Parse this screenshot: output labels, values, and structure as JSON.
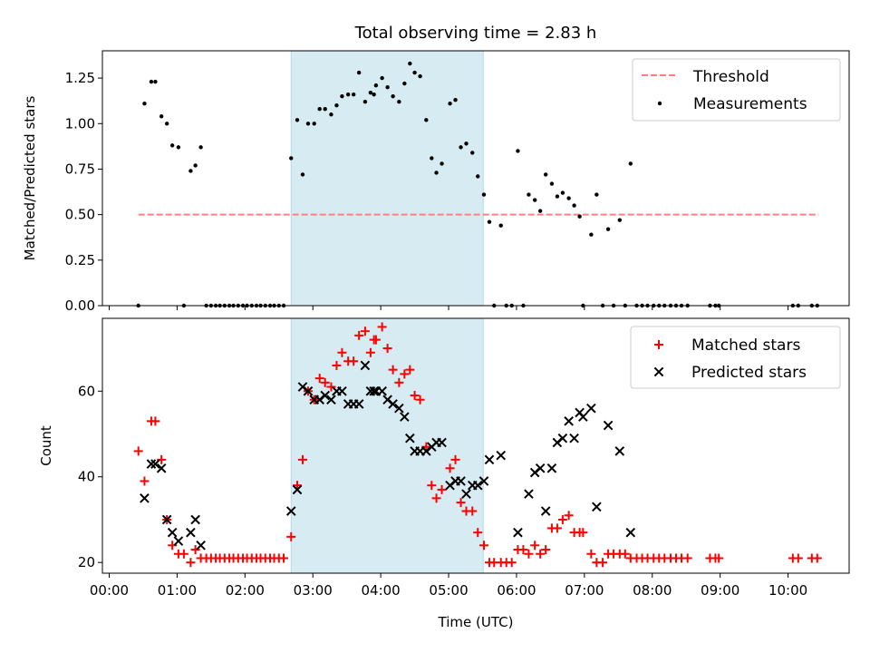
{
  "chart_data": [
    {
      "type": "scatter",
      "title": "Total observing time = 2.83 h",
      "xlabel": "",
      "ylabel": "Matched/Predicted stars",
      "xlim_hours": [
        -0.1,
        10.9
      ],
      "ylim": [
        0,
        1.4
      ],
      "y_ticks": [
        0.0,
        0.25,
        0.5,
        0.75,
        1.0,
        1.25
      ],
      "y_tick_labels": [
        "0.00",
        "0.25",
        "0.50",
        "0.75",
        "1.00",
        "1.25"
      ],
      "shaded_region_hours": [
        2.68,
        5.51
      ],
      "shaded_color": "#add8e6",
      "legend_placement": "top-right",
      "legend": [
        {
          "label": "Threshold",
          "marker": "dashed-line",
          "color": "#ff7f7f"
        },
        {
          "label": "Measurements",
          "marker": "dot",
          "color": "#000000"
        }
      ],
      "threshold": {
        "value": 0.5,
        "x_range_hours": [
          0.43,
          10.45
        ]
      },
      "measurements": [
        [
          0.43,
          0.0
        ],
        [
          0.52,
          1.11
        ],
        [
          0.62,
          1.23
        ],
        [
          0.68,
          1.23
        ],
        [
          0.77,
          1.04
        ],
        [
          0.85,
          1.0
        ],
        [
          0.93,
          0.88
        ],
        [
          1.02,
          0.87
        ],
        [
          1.1,
          0.0
        ],
        [
          1.2,
          0.74
        ],
        [
          1.27,
          0.77
        ],
        [
          1.35,
          0.87
        ],
        [
          1.43,
          0.0
        ],
        [
          1.5,
          0.0
        ],
        [
          1.57,
          0.0
        ],
        [
          1.63,
          0.0
        ],
        [
          1.7,
          0.0
        ],
        [
          1.77,
          0.0
        ],
        [
          1.83,
          0.0
        ],
        [
          1.9,
          0.0
        ],
        [
          1.97,
          0.0
        ],
        [
          2.03,
          0.0
        ],
        [
          2.1,
          0.0
        ],
        [
          2.17,
          0.0
        ],
        [
          2.23,
          0.0
        ],
        [
          2.3,
          0.0
        ],
        [
          2.37,
          0.0
        ],
        [
          2.43,
          0.0
        ],
        [
          2.5,
          0.0
        ],
        [
          2.57,
          0.0
        ],
        [
          2.68,
          0.81
        ],
        [
          2.77,
          1.02
        ],
        [
          2.85,
          0.72
        ],
        [
          2.93,
          1.0
        ],
        [
          3.02,
          1.0
        ],
        [
          3.1,
          1.08
        ],
        [
          3.18,
          1.08
        ],
        [
          3.27,
          1.05
        ],
        [
          3.35,
          1.1
        ],
        [
          3.43,
          1.15
        ],
        [
          3.52,
          1.16
        ],
        [
          3.6,
          1.16
        ],
        [
          3.68,
          1.28
        ],
        [
          3.77,
          1.12
        ],
        [
          3.85,
          1.17
        ],
        [
          3.9,
          1.16
        ],
        [
          3.93,
          1.21
        ],
        [
          4.02,
          1.25
        ],
        [
          4.1,
          1.2
        ],
        [
          4.18,
          1.15
        ],
        [
          4.27,
          1.12
        ],
        [
          4.35,
          1.22
        ],
        [
          4.43,
          1.33
        ],
        [
          4.5,
          1.28
        ],
        [
          4.58,
          1.26
        ],
        [
          4.67,
          1.02
        ],
        [
          4.75,
          0.81
        ],
        [
          4.82,
          0.73
        ],
        [
          4.9,
          0.78
        ],
        [
          5.02,
          1.11
        ],
        [
          5.1,
          1.13
        ],
        [
          5.18,
          0.87
        ],
        [
          5.26,
          0.89
        ],
        [
          5.35,
          0.84
        ],
        [
          5.43,
          0.71
        ],
        [
          5.52,
          0.61
        ],
        [
          5.6,
          0.46
        ],
        [
          5.67,
          0.0
        ],
        [
          5.77,
          0.44
        ],
        [
          5.85,
          0.0
        ],
        [
          5.93,
          0.0
        ],
        [
          6.02,
          0.85
        ],
        [
          6.1,
          0.0
        ],
        [
          6.18,
          0.61
        ],
        [
          6.27,
          0.58
        ],
        [
          6.35,
          0.52
        ],
        [
          6.43,
          0.72
        ],
        [
          6.52,
          0.67
        ],
        [
          6.6,
          0.6
        ],
        [
          6.68,
          0.62
        ],
        [
          6.77,
          0.59
        ],
        [
          6.85,
          0.55
        ],
        [
          6.93,
          0.49
        ],
        [
          6.98,
          0.0
        ],
        [
          7.1,
          0.39
        ],
        [
          7.18,
          0.61
        ],
        [
          7.27,
          0.0
        ],
        [
          7.35,
          0.42
        ],
        [
          7.43,
          0.0
        ],
        [
          7.52,
          0.47
        ],
        [
          7.6,
          0.0
        ],
        [
          7.68,
          0.78
        ],
        [
          7.77,
          0.0
        ],
        [
          7.85,
          0.0
        ],
        [
          7.93,
          0.0
        ],
        [
          8.02,
          0.0
        ],
        [
          8.1,
          0.0
        ],
        [
          8.18,
          0.0
        ],
        [
          8.27,
          0.0
        ],
        [
          8.35,
          0.0
        ],
        [
          8.43,
          0.0
        ],
        [
          8.52,
          0.0
        ],
        [
          8.85,
          0.0
        ],
        [
          8.93,
          0.0
        ],
        [
          8.98,
          0.0
        ],
        [
          10.07,
          0.0
        ],
        [
          10.15,
          0.0
        ],
        [
          10.35,
          0.0
        ],
        [
          10.43,
          0.0
        ]
      ]
    },
    {
      "type": "scatter",
      "title": "",
      "xlabel": "Time (UTC)",
      "ylabel": "Count",
      "xlim_hours": [
        -0.1,
        10.9
      ],
      "ylim": [
        17.5,
        77
      ],
      "y_ticks": [
        20,
        40,
        60
      ],
      "y_tick_labels": [
        "20",
        "40",
        "60"
      ],
      "x_ticks_hours": [
        0,
        1,
        2,
        3,
        4,
        5,
        6,
        7,
        8,
        9,
        10
      ],
      "x_tick_labels": [
        "00:00",
        "01:00",
        "02:00",
        "03:00",
        "04:00",
        "05:00",
        "06:00",
        "07:00",
        "08:00",
        "09:00",
        "10:00"
      ],
      "shaded_region_hours": [
        2.68,
        5.51
      ],
      "shaded_color": "#add8e6",
      "legend_placement": "top-right",
      "legend": [
        {
          "label": "Matched stars",
          "marker": "plus",
          "color": "#ff0000"
        },
        {
          "label": "Predicted stars",
          "marker": "x",
          "color": "#000000"
        }
      ],
      "series": [
        {
          "name": "Matched stars",
          "marker": "plus",
          "color": "#ff0000",
          "points": [
            [
              0.43,
              46
            ],
            [
              0.52,
              39
            ],
            [
              0.62,
              53
            ],
            [
              0.68,
              53
            ],
            [
              0.77,
              44
            ],
            [
              0.85,
              30
            ],
            [
              0.93,
              24
            ],
            [
              1.02,
              22
            ],
            [
              1.1,
              22
            ],
            [
              1.2,
              20
            ],
            [
              1.27,
              23
            ],
            [
              1.35,
              21
            ],
            [
              1.43,
              21
            ],
            [
              1.5,
              21
            ],
            [
              1.57,
              21
            ],
            [
              1.63,
              21
            ],
            [
              1.7,
              21
            ],
            [
              1.77,
              21
            ],
            [
              1.83,
              21
            ],
            [
              1.9,
              21
            ],
            [
              1.97,
              21
            ],
            [
              2.03,
              21
            ],
            [
              2.1,
              21
            ],
            [
              2.17,
              21
            ],
            [
              2.23,
              21
            ],
            [
              2.3,
              21
            ],
            [
              2.37,
              21
            ],
            [
              2.43,
              21
            ],
            [
              2.5,
              21
            ],
            [
              2.57,
              21
            ],
            [
              2.68,
              26
            ],
            [
              2.77,
              38
            ],
            [
              2.85,
              44
            ],
            [
              2.93,
              60
            ],
            [
              3.02,
              58
            ],
            [
              3.1,
              63
            ],
            [
              3.18,
              62
            ],
            [
              3.27,
              61
            ],
            [
              3.35,
              66
            ],
            [
              3.43,
              69
            ],
            [
              3.52,
              67
            ],
            [
              3.6,
              67
            ],
            [
              3.68,
              73
            ],
            [
              3.77,
              74
            ],
            [
              3.85,
              69
            ],
            [
              3.9,
              72
            ],
            [
              3.93,
              72
            ],
            [
              4.02,
              75
            ],
            [
              4.1,
              70
            ],
            [
              4.18,
              65
            ],
            [
              4.27,
              62
            ],
            [
              4.35,
              64
            ],
            [
              4.43,
              65
            ],
            [
              4.5,
              59
            ],
            [
              4.58,
              58
            ],
            [
              4.67,
              47
            ],
            [
              4.75,
              38
            ],
            [
              4.82,
              35
            ],
            [
              4.9,
              37
            ],
            [
              5.02,
              42
            ],
            [
              5.1,
              44
            ],
            [
              5.18,
              34
            ],
            [
              5.26,
              32
            ],
            [
              5.35,
              32
            ],
            [
              5.43,
              27
            ],
            [
              5.52,
              24
            ],
            [
              5.6,
              20
            ],
            [
              5.67,
              20
            ],
            [
              5.77,
              20
            ],
            [
              5.85,
              20
            ],
            [
              5.93,
              20
            ],
            [
              6.02,
              23
            ],
            [
              6.1,
              23
            ],
            [
              6.18,
              22
            ],
            [
              6.27,
              24
            ],
            [
              6.35,
              22
            ],
            [
              6.43,
              23
            ],
            [
              6.52,
              28
            ],
            [
              6.6,
              28
            ],
            [
              6.68,
              30
            ],
            [
              6.77,
              31
            ],
            [
              6.85,
              27
            ],
            [
              6.93,
              27
            ],
            [
              6.98,
              27
            ],
            [
              7.1,
              22
            ],
            [
              7.18,
              20
            ],
            [
              7.27,
              20
            ],
            [
              7.35,
              22
            ],
            [
              7.43,
              22
            ],
            [
              7.52,
              22
            ],
            [
              7.6,
              22
            ],
            [
              7.68,
              21
            ],
            [
              7.77,
              21
            ],
            [
              7.85,
              21
            ],
            [
              7.93,
              21
            ],
            [
              8.02,
              21
            ],
            [
              8.1,
              21
            ],
            [
              8.18,
              21
            ],
            [
              8.27,
              21
            ],
            [
              8.35,
              21
            ],
            [
              8.43,
              21
            ],
            [
              8.52,
              21
            ],
            [
              8.85,
              21
            ],
            [
              8.93,
              21
            ],
            [
              8.98,
              21
            ],
            [
              10.07,
              21
            ],
            [
              10.15,
              21
            ],
            [
              10.35,
              21
            ],
            [
              10.43,
              21
            ]
          ]
        },
        {
          "name": "Predicted stars",
          "marker": "x",
          "color": "#000000",
          "points": [
            [
              0.52,
              35
            ],
            [
              0.62,
              43
            ],
            [
              0.68,
              43
            ],
            [
              0.77,
              42
            ],
            [
              0.85,
              30
            ],
            [
              0.93,
              27
            ],
            [
              1.02,
              25
            ],
            [
              1.2,
              27
            ],
            [
              1.27,
              30
            ],
            [
              1.35,
              24
            ],
            [
              2.68,
              32
            ],
            [
              2.77,
              37
            ],
            [
              2.85,
              61
            ],
            [
              2.93,
              60
            ],
            [
              3.02,
              58
            ],
            [
              3.1,
              58
            ],
            [
              3.18,
              59
            ],
            [
              3.27,
              58
            ],
            [
              3.35,
              60
            ],
            [
              3.43,
              60
            ],
            [
              3.52,
              57
            ],
            [
              3.6,
              57
            ],
            [
              3.68,
              57
            ],
            [
              3.77,
              66
            ],
            [
              3.85,
              60
            ],
            [
              3.9,
              60
            ],
            [
              3.93,
              60
            ],
            [
              4.02,
              60
            ],
            [
              4.1,
              58
            ],
            [
              4.18,
              57
            ],
            [
              4.27,
              56
            ],
            [
              4.35,
              54
            ],
            [
              4.43,
              49
            ],
            [
              4.5,
              46
            ],
            [
              4.58,
              46
            ],
            [
              4.67,
              46
            ],
            [
              4.75,
              47
            ],
            [
              4.82,
              48
            ],
            [
              4.9,
              48
            ],
            [
              5.02,
              38
            ],
            [
              5.1,
              39
            ],
            [
              5.18,
              39
            ],
            [
              5.26,
              36
            ],
            [
              5.35,
              38
            ],
            [
              5.43,
              38
            ],
            [
              5.52,
              39
            ],
            [
              5.6,
              44
            ],
            [
              5.77,
              45
            ],
            [
              6.02,
              27
            ],
            [
              6.18,
              36
            ],
            [
              6.27,
              41
            ],
            [
              6.35,
              42
            ],
            [
              6.43,
              32
            ],
            [
              6.52,
              42
            ],
            [
              6.6,
              48
            ],
            [
              6.68,
              49
            ],
            [
              6.77,
              53
            ],
            [
              6.85,
              49
            ],
            [
              6.93,
              55
            ],
            [
              6.98,
              54
            ],
            [
              7.1,
              56
            ],
            [
              7.18,
              33
            ],
            [
              7.35,
              52
            ],
            [
              7.52,
              46
            ],
            [
              7.68,
              27
            ]
          ]
        }
      ]
    }
  ]
}
